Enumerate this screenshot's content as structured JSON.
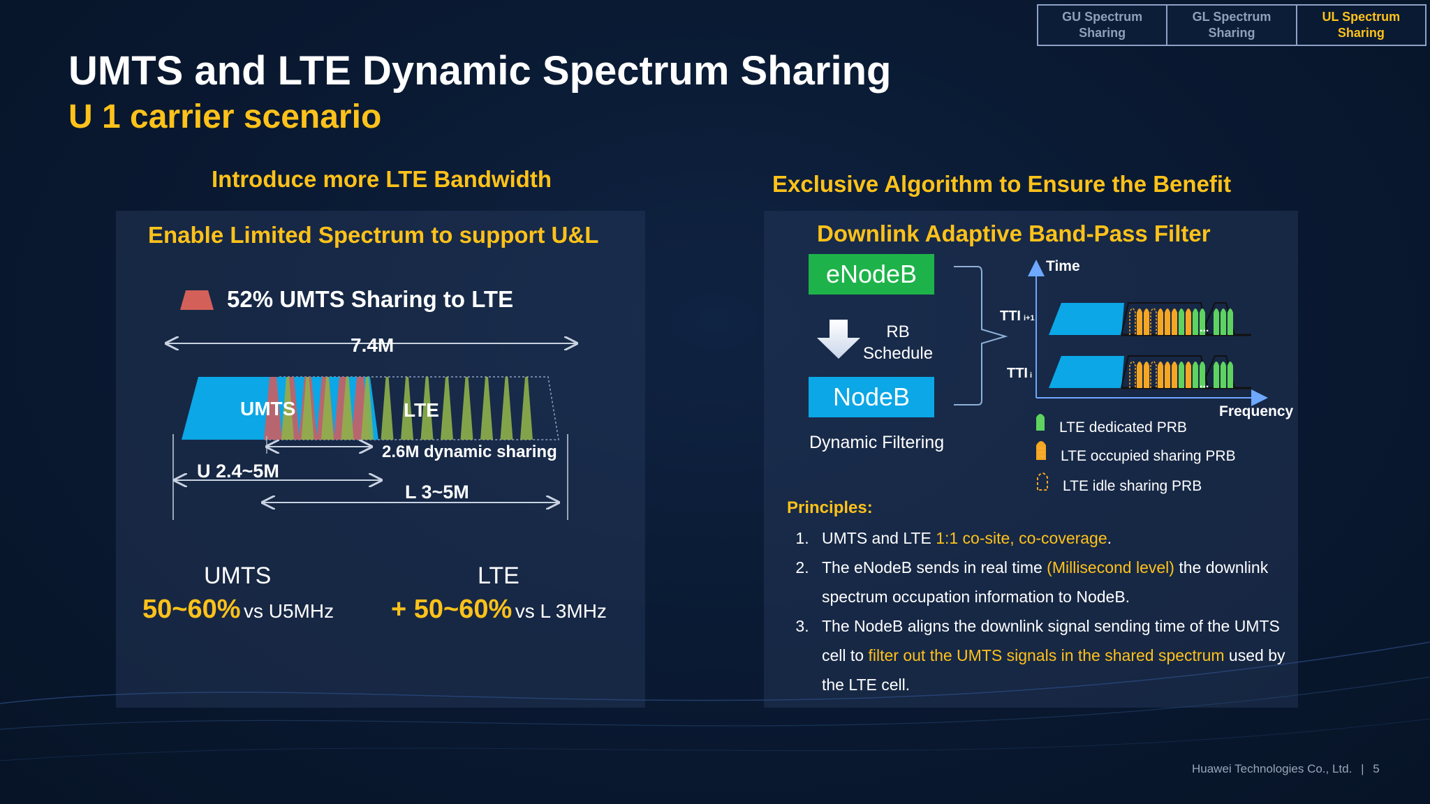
{
  "tabs": [
    {
      "label": "GU Spectrum\nSharing",
      "active": false
    },
    {
      "label": "GL Spectrum\nSharing",
      "active": false
    },
    {
      "label": "UL Spectrum\nSharing",
      "active": true
    }
  ],
  "title": "UMTS and LTE Dynamic Spectrum Sharing",
  "subtitle": "U 1 carrier scenario",
  "left": {
    "heading": "Introduce more LTE Bandwidth",
    "panel_title": "Enable Limited Spectrum to support U&L",
    "sharing_label": "52% UMTS Sharing to LTE",
    "total_bw": "7.4M",
    "umts_label": "UMTS",
    "lte_label": "LTE",
    "dynamic_sharing": "2.6M dynamic sharing",
    "u_range": "U 2.4~5M",
    "l_range": "L 3~5M",
    "umts_result": {
      "name": "UMTS",
      "value": "50~60%",
      "comparison": "vs U5MHz"
    },
    "lte_result": {
      "name": "LTE",
      "value": "+ 50~60%",
      "comparison": "vs L 3MHz"
    }
  },
  "right": {
    "heading": "Exclusive Algorithm to Ensure the Benefit",
    "panel_title": "Downlink Adaptive Band-Pass Filter",
    "enodeb": "eNodeB",
    "rb_schedule": "RB\nSchedule",
    "nodeb": "NodeB",
    "dynamic_filtering": "Dynamic Filtering",
    "axis_time": "Time",
    "axis_frequency": "Frequency",
    "tti_next": "TTI",
    "tti_next_sub": "i+1",
    "tti_current": "TTI",
    "tti_current_sub": "i",
    "ellipsis": "...",
    "legend": [
      {
        "label": "LTE dedicated PRB",
        "color": "#5fd35f"
      },
      {
        "label": "LTE occupied sharing PRB",
        "color": "#f5a623"
      },
      {
        "label": "LTE idle sharing PRB",
        "color": "#f5a623"
      }
    ],
    "principles_title": "Principles:",
    "principles": [
      {
        "a": "UMTS and LTE ",
        "h": "1:1 co-site, co-coverage",
        "b": "."
      },
      {
        "a": "The eNodeB sends in real time ",
        "h": "(Millisecond level)",
        "b": " the downlink spectrum occupation information to NodeB."
      },
      {
        "a": "The NodeB aligns the downlink signal sending time of the UMTS cell to ",
        "h": "filter out the UMTS signals in the shared spectrum",
        "b": " used by the LTE cell."
      }
    ]
  },
  "footer": {
    "company": "Huawei Technologies Co., Ltd.",
    "page": "5"
  },
  "colors": {
    "accent": "#ffc21a",
    "umts_blue": "#0ba7e6",
    "lte_green": "#8fb04a",
    "enodeb_green": "#1db34a"
  }
}
